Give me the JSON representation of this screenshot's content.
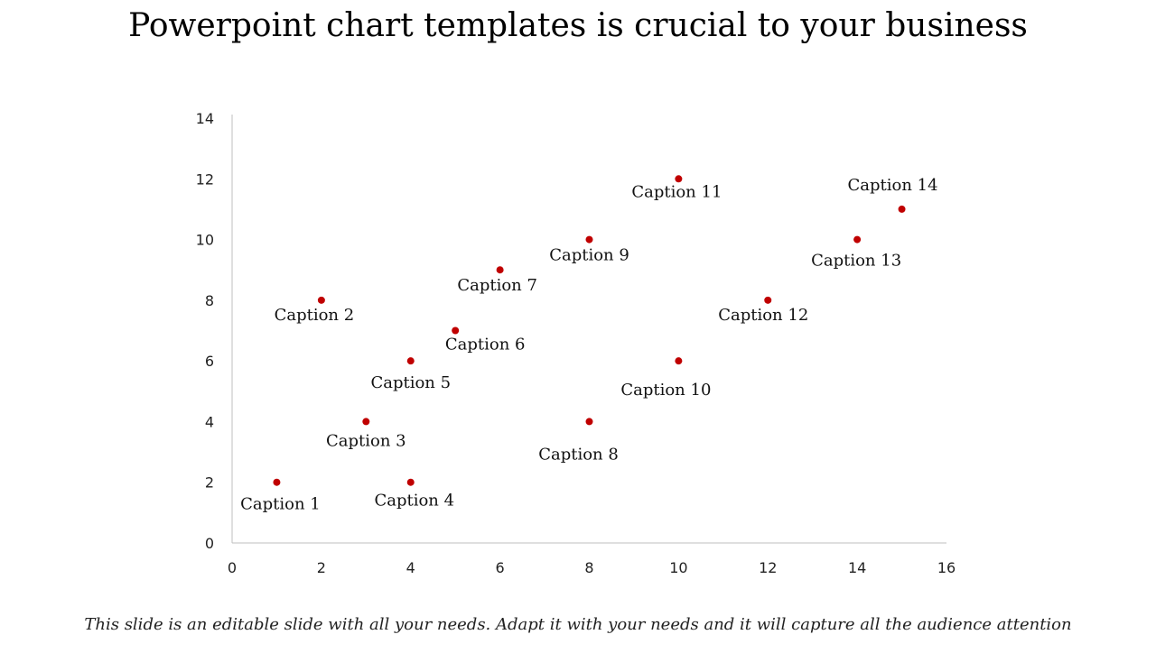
{
  "slide": {
    "title": "Powerpoint chart templates is crucial to your business",
    "footer": "This slide is an editable slide with all your needs. Adapt it with your needs and it will capture all the audience attention"
  },
  "chart_data": {
    "type": "scatter",
    "title": "",
    "xlabel": "",
    "ylabel": "",
    "xlim": [
      0,
      16
    ],
    "ylim": [
      0,
      14
    ],
    "xticks": [
      0,
      2,
      4,
      6,
      8,
      10,
      12,
      14,
      16
    ],
    "yticks": [
      0,
      2,
      4,
      6,
      8,
      10,
      12,
      14
    ],
    "grid": false,
    "legend": "none",
    "marker_color": "#c00000",
    "points": [
      {
        "x": 1,
        "y": 2,
        "label": "Caption 1"
      },
      {
        "x": 2,
        "y": 8,
        "label": "Caption 2"
      },
      {
        "x": 3,
        "y": 4,
        "label": "Caption 3"
      },
      {
        "x": 4,
        "y": 2,
        "label": "Caption 4"
      },
      {
        "x": 4,
        "y": 6,
        "label": "Caption 5"
      },
      {
        "x": 5,
        "y": 7,
        "label": "Caption 6"
      },
      {
        "x": 6,
        "y": 9,
        "label": "Caption 7"
      },
      {
        "x": 8,
        "y": 4,
        "label": "Caption 8"
      },
      {
        "x": 8,
        "y": 10,
        "label": "Caption 9"
      },
      {
        "x": 10,
        "y": 6,
        "label": "Caption 10"
      },
      {
        "x": 10,
        "y": 12,
        "label": "Caption 11"
      },
      {
        "x": 12,
        "y": 8,
        "label": "Caption 12"
      },
      {
        "x": 14,
        "y": 10,
        "label": "Caption 13"
      },
      {
        "x": 15,
        "y": 11,
        "label": "Caption 14"
      }
    ]
  }
}
